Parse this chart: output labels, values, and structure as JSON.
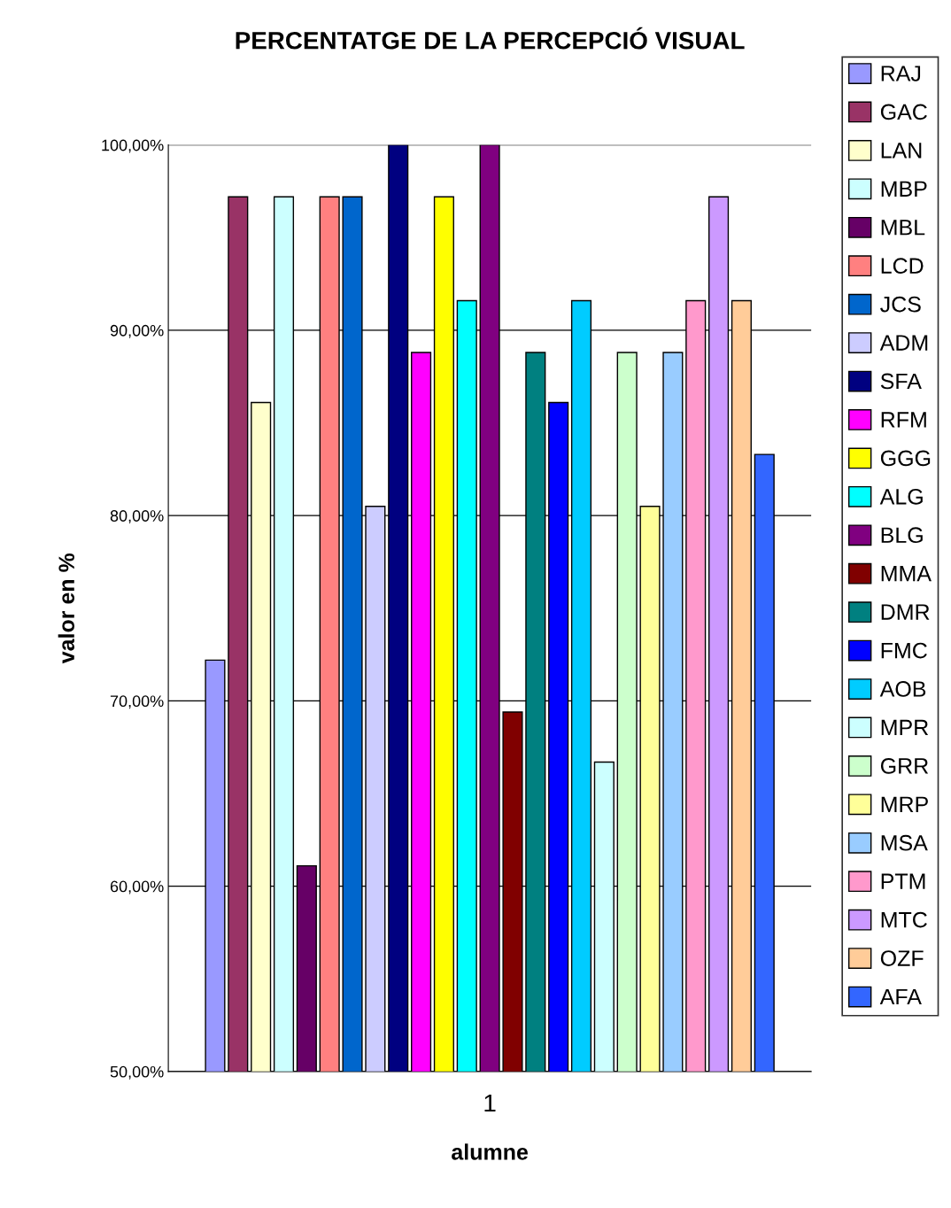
{
  "chart_data": {
    "type": "bar",
    "title": "PERCENTATGE DE LA PERCEPCIÓ VISUAL",
    "xlabel": "alumne",
    "ylabel": "valor en %",
    "categories": [
      "1"
    ],
    "series": [
      {
        "name": "RAJ",
        "color": "#9999ff",
        "values": [
          72.2
        ]
      },
      {
        "name": "GAC",
        "color": "#993366",
        "values": [
          97.2
        ]
      },
      {
        "name": "LAN",
        "color": "#ffffcc",
        "values": [
          86.1
        ]
      },
      {
        "name": "MBP",
        "color": "#ccffff",
        "values": [
          97.2
        ]
      },
      {
        "name": "MBL",
        "color": "#660066",
        "values": [
          61.1
        ]
      },
      {
        "name": "LCD",
        "color": "#ff8080",
        "values": [
          97.2
        ]
      },
      {
        "name": "JCS",
        "color": "#0066cc",
        "values": [
          97.2
        ]
      },
      {
        "name": "ADM",
        "color": "#ccccff",
        "values": [
          80.5
        ]
      },
      {
        "name": "SFA",
        "color": "#000080",
        "values": [
          100
        ]
      },
      {
        "name": "RFM",
        "color": "#ff00ff",
        "values": [
          88.8
        ]
      },
      {
        "name": "GGG",
        "color": "#ffff00",
        "values": [
          97.2
        ]
      },
      {
        "name": "ALG",
        "color": "#00ffff",
        "values": [
          91.6
        ]
      },
      {
        "name": "BLG",
        "color": "#800080",
        "values": [
          100
        ]
      },
      {
        "name": "MMA",
        "color": "#800000",
        "values": [
          69.4
        ]
      },
      {
        "name": "DMR",
        "color": "#008080",
        "values": [
          88.8
        ]
      },
      {
        "name": "FMC",
        "color": "#0000ff",
        "values": [
          86.1
        ]
      },
      {
        "name": "AOB",
        "color": "#00ccff",
        "values": [
          91.6
        ]
      },
      {
        "name": "MPR",
        "color": "#ccffff",
        "values": [
          66.7
        ]
      },
      {
        "name": "GRR",
        "color": "#ccffcc",
        "values": [
          88.8
        ]
      },
      {
        "name": "MRP",
        "color": "#ffff99",
        "values": [
          80.5
        ]
      },
      {
        "name": "MSA",
        "color": "#99ccff",
        "values": [
          88.8
        ]
      },
      {
        "name": "PTM",
        "color": "#ff99cc",
        "values": [
          91.6
        ]
      },
      {
        "name": "MTC",
        "color": "#cc99ff",
        "values": [
          97.2
        ]
      },
      {
        "name": "OZF",
        "color": "#ffcc99",
        "values": [
          91.6
        ]
      },
      {
        "name": "AFA",
        "color": "#3366ff",
        "values": [
          83.3
        ]
      }
    ],
    "ylim": [
      50,
      100
    ],
    "yticks": [
      {
        "value": 50,
        "label": "50,00%"
      },
      {
        "value": 60,
        "label": "60,00%"
      },
      {
        "value": 70,
        "label": "70,00%"
      },
      {
        "value": 80,
        "label": "80,00%"
      },
      {
        "value": 90,
        "label": "90,00%"
      },
      {
        "value": 100,
        "label": "100,00%"
      }
    ],
    "grid": "y",
    "legend": "right"
  }
}
